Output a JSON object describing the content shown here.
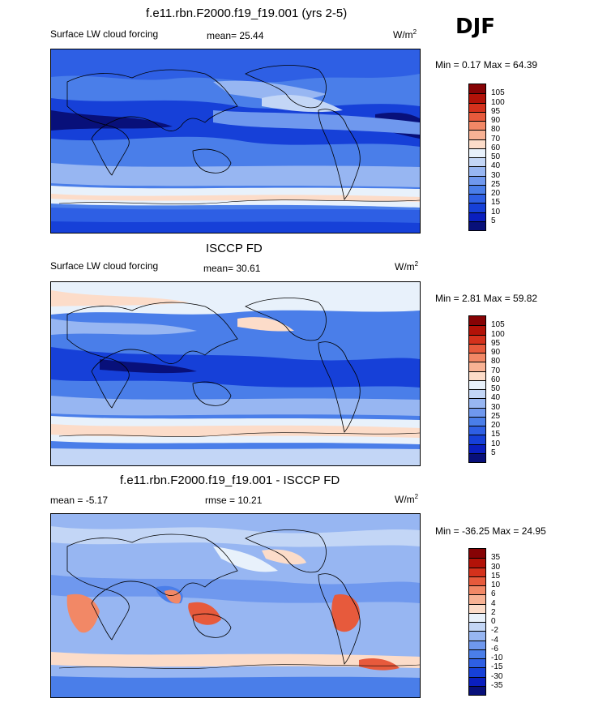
{
  "season": "DJF",
  "units_main": "W/m",
  "units_sup": "2",
  "panels": [
    {
      "title": "f.e11.rbn.F2000.f19_f19.001 (yrs 2-5)",
      "left_label": "Surface LW cloud forcing",
      "stat_text": "mean=  25.44",
      "range_text": "Min =   0.17 Max =  64.39",
      "levels": [
        "5",
        "10",
        "15",
        "20",
        "25",
        "30",
        "40",
        "50",
        "60",
        "70",
        "80",
        "90",
        "95",
        "100",
        "105"
      ],
      "colors": [
        "#08107a",
        "#0a1fbf",
        "#1640d8",
        "#2e5fe4",
        "#4a7ee9",
        "#6f98ee",
        "#97b6f2",
        "#c3d6f6",
        "#e8f1fb",
        "#fcdcc9",
        "#f8b294",
        "#f28866",
        "#e75a3c",
        "#d4311c",
        "#b21208",
        "#860305"
      ],
      "label_sets": [
        "#08107a",
        "#0a1fbf",
        "#1640d8",
        "#2e5fe4",
        "#4a7ee9",
        "#6f98ee"
      ]
    },
    {
      "title": "ISCCP FD",
      "left_label": "Surface LW cloud forcing",
      "stat_text": "mean=  30.61",
      "range_text": "Min =   2.81 Max =  59.82",
      "levels": [
        "5",
        "10",
        "15",
        "20",
        "25",
        "30",
        "40",
        "50",
        "60",
        "70",
        "80",
        "90",
        "95",
        "100",
        "105"
      ],
      "colors": [
        "#08107a",
        "#0a1fbf",
        "#1640d8",
        "#2e5fe4",
        "#4a7ee9",
        "#6f98ee",
        "#97b6f2",
        "#c3d6f6",
        "#e8f1fb",
        "#fcdcc9",
        "#f8b294",
        "#f28866",
        "#e75a3c",
        "#d4311c",
        "#b21208",
        "#860305"
      ]
    },
    {
      "title": "f.e11.rbn.F2000.f19_f19.001 - ISCCP FD",
      "left_label": "mean =  -5.17",
      "stat_text": "rmse =  10.21",
      "range_text": "Min = -36.25 Max =  24.95",
      "levels": [
        "-35",
        "-30",
        "-15",
        "-10",
        "-6",
        "-4",
        "-2",
        "0",
        "2",
        "4",
        "6",
        "10",
        "15",
        "30",
        "35"
      ],
      "colors": [
        "#08107a",
        "#0a1fbf",
        "#1640d8",
        "#2e5fe4",
        "#4a7ee9",
        "#6f98ee",
        "#97b6f2",
        "#c3d6f6",
        "#e8f1fb",
        "#fcdcc9",
        "#f8b294",
        "#f28866",
        "#e75a3c",
        "#d4311c",
        "#b21208",
        "#860305"
      ]
    }
  ],
  "chart_data": {
    "type": "heatmap",
    "season": "DJF",
    "variable": "Surface LW cloud forcing",
    "units": "W/m2",
    "maps": [
      {
        "title": "f.e11.rbn.F2000.f19_f19.001 (yrs 2-5)",
        "mean": 25.44,
        "min": 0.17,
        "max": 64.39,
        "contour_levels": [
          5,
          10,
          15,
          20,
          25,
          30,
          40,
          50,
          60,
          70,
          80,
          90,
          95,
          100,
          105
        ]
      },
      {
        "title": "ISCCP FD",
        "mean": 30.61,
        "min": 2.81,
        "max": 59.82,
        "contour_levels": [
          5,
          10,
          15,
          20,
          25,
          30,
          40,
          50,
          60,
          70,
          80,
          90,
          95,
          100,
          105
        ]
      },
      {
        "title": "f.e11.rbn.F2000.f19_f19.001 - ISCCP FD",
        "mean": -5.17,
        "rmse": 10.21,
        "min": -36.25,
        "max": 24.95,
        "contour_levels": [
          -35,
          -30,
          -15,
          -10,
          -6,
          -4,
          -2,
          0,
          2,
          4,
          6,
          10,
          15,
          30,
          35
        ]
      }
    ]
  }
}
